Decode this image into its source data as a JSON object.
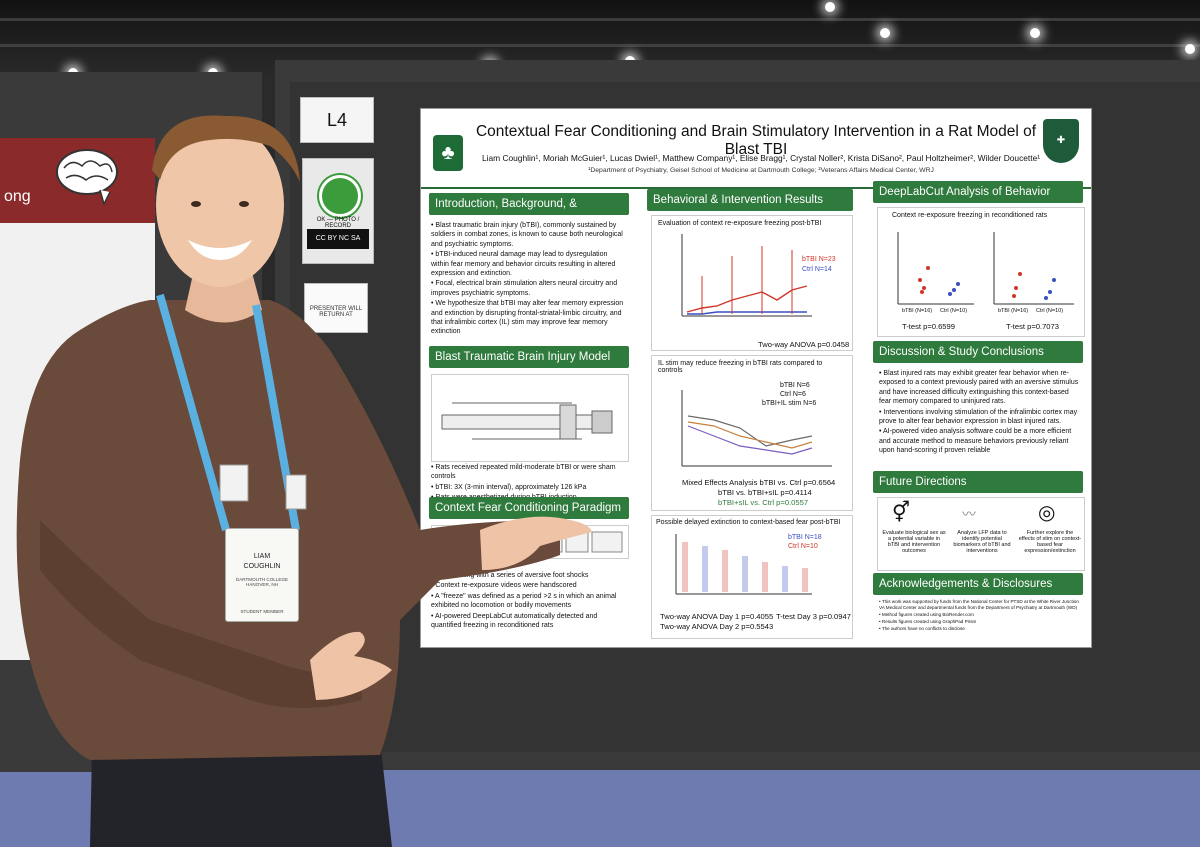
{
  "scene": {
    "board_label": "L4",
    "left_poster_fragment": "ong",
    "cc_sticker_text": "OK — PHOTO / RECORD",
    "cc_license": "CC BY NC SA",
    "presenter_card": "PRESENTER WILL RETURN AT"
  },
  "person": {
    "badge_first": "LIAM",
    "badge_last": "COUGHLIN",
    "badge_org": "DARTMOUTH COLLEGE HANOVER, NH",
    "badge_role": "STUDENT MEMBER"
  },
  "poster": {
    "title": "Contextual Fear Conditioning and Brain Stimulatory Intervention in a Rat Model of Blast TBI",
    "authors": "Liam Coughlin¹, Moriah McGuier¹, Lucas Dwiel¹, Matthew Company¹, Elise Bragg¹, Crystal Noller², Krista DiSano², Paul Holtzheimer², Wilder Doucette¹",
    "affiliation": "¹Department of Psychiatry, Geisel School of Medicine at Dartmouth College; ²Veterans Affairs Medical Center, WRJ",
    "sections": {
      "intro": {
        "title": "Introduction, Background, & Hypothesis",
        "bullets": [
          "Blast traumatic brain injury (bTBI), commonly sustained by soldiers in combat zones, is known to cause both neurological and psychiatric symptoms.",
          "bTBI-induced neural damage may lead to dysregulation within fear memory and behavior circuits resulting in altered expression and extinction.",
          "Focal, electrical brain stimulation alters neural circuitry and improves psychiatric symptoms.",
          "We hypothesize that bTBI may alter fear memory expression and extinction by disrupting frontal-striatal-limbic circuitry, and that infralimbic cortex (IL) stim may improve fear memory extinction"
        ]
      },
      "model": {
        "title": "Blast Traumatic Brain Injury Model",
        "bullets": [
          "Rats received repeated mild-moderate bTBI or were sham controls",
          "bTBI: 3X (3-min interval), approximately 126 kPa",
          "Rats were anesthetized during bTBI induction"
        ]
      },
      "paradigm": {
        "title": "Context Fear Conditioning Paradigm",
        "bullets": [
          "Conditioning with a series of aversive foot shocks",
          "Context re-exposure videos were handscored",
          "A \"freeze\" was defined as a period >2 s in which an animal exhibited no locomotion or bodily movements",
          "AI-powered DeepLabCut automatically detected and quantified freezing in reconditioned rats"
        ]
      },
      "results": {
        "title": "Behavioral & Intervention Results",
        "fig1_title": "Evaluation of context re-exposure freezing post-bTBI",
        "fig1_legend": [
          "bTBI N=23",
          "Ctrl N=14"
        ],
        "fig1_stat": "Two-way ANOVA p=0.0458",
        "fig2_title": "IL stim may reduce freezing in bTBI rats compared to controls",
        "fig2_legend": [
          "bTBI N=6",
          "Ctrl N=6",
          "bTBI+IL stim N=6"
        ],
        "fig2_stats": [
          "Mixed Effects Analysis bTBI vs. Ctrl p=0.6564",
          "bTBI vs. bTBI+sIL p=0.4114",
          "bTBI+sIL vs. Ctrl p=0.0557"
        ],
        "fig3_title": "Possible delayed extinction to context-based fear post-bTBI",
        "fig3_legend": [
          "bTBI N=18",
          "Ctrl N=10"
        ],
        "fig3_stats": [
          "Two-way ANOVA Day 1 p=0.4055",
          "T-test Day 3 p=0.0947",
          "Two-way ANOVA Day 2 p=0.5543"
        ]
      },
      "dlc": {
        "title": "DeepLabCut Analysis of Behavior",
        "fig_title": "Context re-exposure freezing in reconditioned rats",
        "stat_left": "T-test p=0.6599",
        "stat_right": "T-test p=0.7073",
        "x_left": [
          "bTBI (N=16)",
          "Ctrl (N=10)"
        ],
        "x_right": [
          "bTBI (N=16)",
          "Ctrl (N=10)"
        ]
      },
      "discussion": {
        "title": "Discussion & Study Conclusions",
        "bullets": [
          "Blast injured rats may exhibit greater fear behavior when re-exposed to a context previously paired with an aversive stimulus and have increased difficulty extinguishing this context-based fear memory compared to uninjured rats.",
          "Interventions involving stimulation of the infralimbic cortex may prove to alter fear behavior expression in blast injured rats.",
          "AI-powered video analysis software could be a more efficient and accurate method to measure behaviors previously reliant upon hand-scoring if proven reliable"
        ]
      },
      "future": {
        "title": "Future Directions",
        "items": [
          "Evaluate biological sex as a potential variable in bTBI and intervention outcomes",
          "Analyze LFP data to identify potential biomarkers of bTBI and interventions",
          "Further explore the effects of stim on context-based fear expression/extinction"
        ]
      },
      "ack": {
        "title": "Acknowledgements & Disclosures",
        "bullets": [
          "This work was supported by funds from the National Center for PTSD at the White River Junction VA Medical Center and departmental funds from the Department of Psychiatry at Dartmouth (WD)",
          "Method figures created using BioRender.com",
          "Results figures created using GraphPad Prism",
          "The authors have no conflicts to disclose"
        ]
      }
    }
  },
  "colors": {
    "btbi": "#d2352a",
    "ctrl": "#3a4fc0",
    "green": "#2f7a3d"
  }
}
